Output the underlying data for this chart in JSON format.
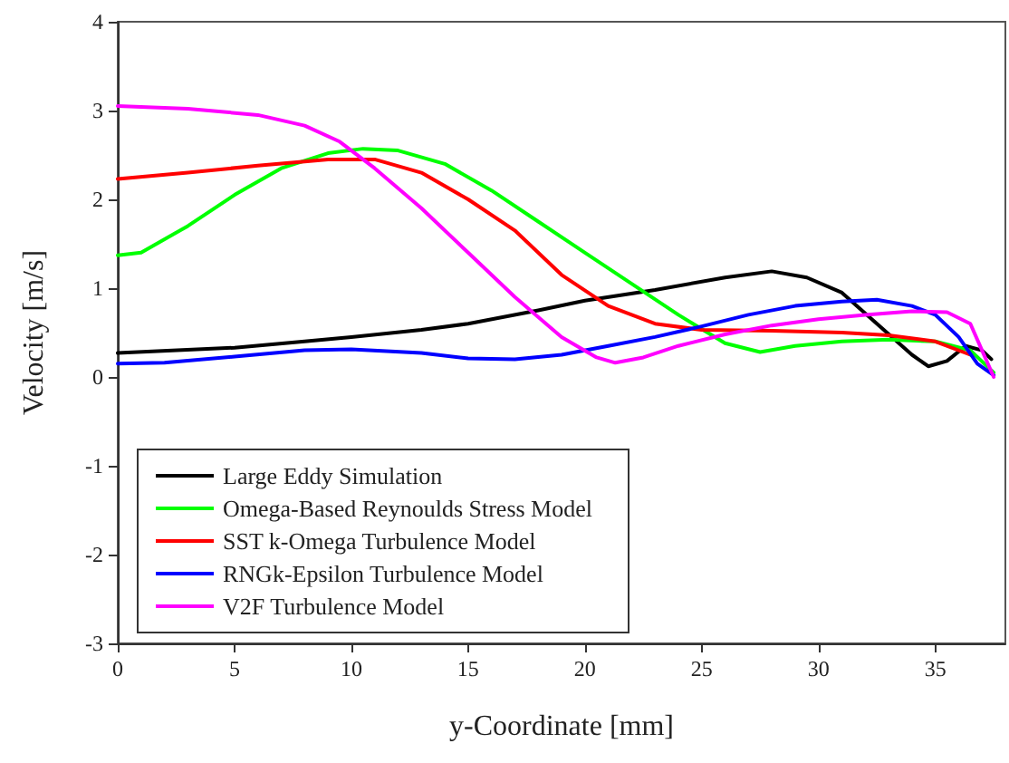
{
  "chart_data": {
    "type": "line",
    "xlabel": "y-Coordinate [mm]",
    "ylabel": "Velocity [m/s]",
    "xlim": [
      0,
      38
    ],
    "xticks": [
      0,
      5,
      10,
      15,
      20,
      25,
      30,
      35
    ],
    "ylim": [
      -3,
      4
    ],
    "yticks": [
      -3,
      -2,
      -1,
      0,
      1,
      2,
      3,
      4
    ],
    "grid": false,
    "legend": "bottom left",
    "marker": "none",
    "line_style": "solid",
    "series": [
      {
        "name": "Large Eddy Simulation",
        "color": "#000000",
        "x": [
          0,
          5,
          8,
          10,
          13,
          15,
          18,
          20,
          23,
          26,
          28,
          29.5,
          31,
          32.5,
          34,
          34.7,
          35.5,
          36.3,
          37,
          37.4
        ],
        "values": [
          0.27,
          0.33,
          0.4,
          0.45,
          0.53,
          0.6,
          0.75,
          0.86,
          0.98,
          1.12,
          1.19,
          1.12,
          0.95,
          0.6,
          0.25,
          0.12,
          0.18,
          0.35,
          0.3,
          0.2
        ]
      },
      {
        "name": "Omega-Based Reynoulds Stress Model",
        "color": "#00ff00",
        "x": [
          0,
          1,
          3,
          5,
          7,
          9,
          10.5,
          12,
          14,
          16,
          18,
          20,
          22,
          24,
          26,
          27.5,
          29,
          31,
          33,
          35,
          36.5,
          37.5
        ],
        "values": [
          1.37,
          1.4,
          1.7,
          2.05,
          2.35,
          2.52,
          2.57,
          2.55,
          2.4,
          2.1,
          1.75,
          1.4,
          1.05,
          0.7,
          0.38,
          0.28,
          0.35,
          0.4,
          0.42,
          0.4,
          0.3,
          0.05
        ]
      },
      {
        "name": "SST k-Omega Turbulence Model",
        "color": "#ff0000",
        "x": [
          0,
          3,
          6,
          9,
          11,
          13,
          15,
          17,
          19,
          21,
          23,
          25,
          28,
          31,
          33,
          35,
          36.5
        ],
        "values": [
          2.23,
          2.3,
          2.38,
          2.45,
          2.45,
          2.3,
          2.0,
          1.65,
          1.15,
          0.8,
          0.6,
          0.53,
          0.52,
          0.5,
          0.47,
          0.4,
          0.25
        ]
      },
      {
        "name": "RNGk-Epsilon Turbulence Model",
        "color": "#0000ff",
        "x": [
          0,
          2,
          5,
          8,
          10,
          13,
          15,
          17,
          19,
          21,
          23,
          25,
          27,
          29,
          31,
          32.5,
          34,
          35,
          36,
          36.8,
          37.5
        ],
        "values": [
          0.15,
          0.16,
          0.23,
          0.3,
          0.31,
          0.27,
          0.21,
          0.2,
          0.25,
          0.35,
          0.45,
          0.57,
          0.7,
          0.8,
          0.85,
          0.87,
          0.8,
          0.7,
          0.45,
          0.15,
          0.02
        ]
      },
      {
        "name": "V2F Turbulence Model",
        "color": "#ff00ff",
        "x": [
          0,
          3,
          6,
          8,
          9.5,
          11,
          13,
          15,
          17,
          19,
          20.5,
          21.3,
          22.5,
          24,
          26,
          28,
          30,
          32,
          34,
          35.5,
          36.5,
          37,
          37.5
        ],
        "values": [
          3.05,
          3.02,
          2.95,
          2.83,
          2.65,
          2.35,
          1.9,
          1.4,
          0.9,
          0.45,
          0.22,
          0.16,
          0.22,
          0.35,
          0.48,
          0.58,
          0.65,
          0.7,
          0.74,
          0.73,
          0.6,
          0.3,
          0.0
        ]
      }
    ]
  }
}
